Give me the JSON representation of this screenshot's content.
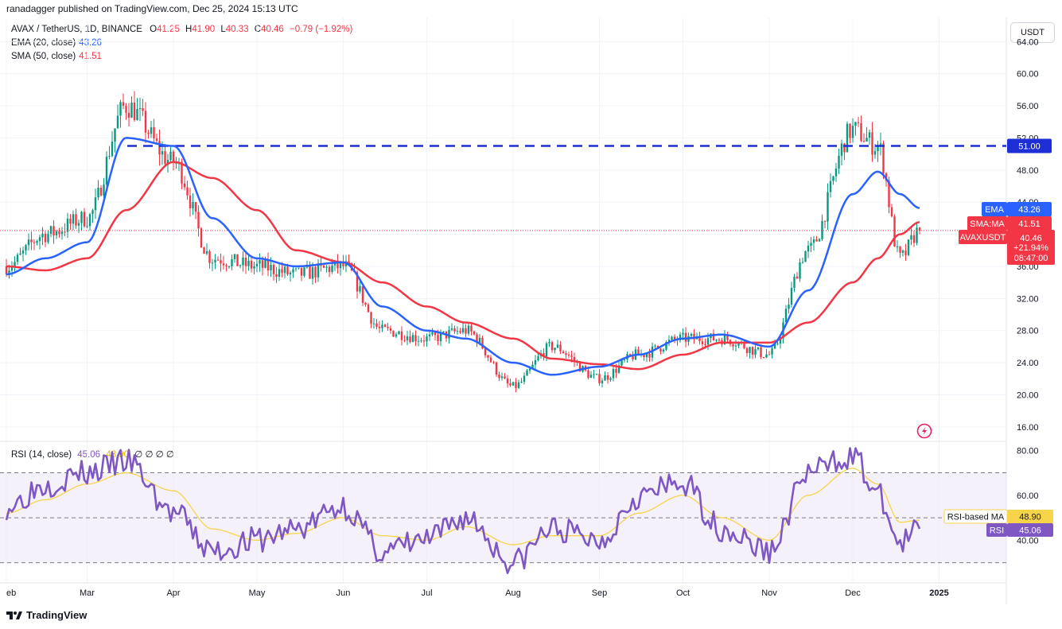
{
  "header": {
    "author": "ranadagger",
    "published_text": "published on TradingView.com, Dec 25, 2024 15:13 UTC"
  },
  "symbol_legend": {
    "symbol": "AVAX / TetherUS, 1D, BINANCE",
    "o_label": "O",
    "o": "41.25",
    "h_label": "H",
    "h": "41.90",
    "l_label": "L",
    "l": "40.33",
    "c_label": "C",
    "c": "40.46",
    "change": "−0.79 (−1.92%)",
    "ema_label": "EMA (20, close)",
    "ema_value": "43.26",
    "sma_label": "SMA (50, close)",
    "sma_value": "41.51"
  },
  "rsi_legend": {
    "label": "RSI (14, close)",
    "rsi": "45.06",
    "rsi_ma": "48.90",
    "placeholders": "∅ ∅ ∅ ∅"
  },
  "currency_button": "USDT",
  "price_axis": {
    "ticks": [
      "64.00",
      "60.00",
      "56.00",
      "52.00",
      "48.00",
      "44.00",
      "40.00",
      "36.00",
      "32.00",
      "28.00",
      "24.00",
      "20.00",
      "16.00"
    ]
  },
  "rsi_axis": {
    "ticks": [
      "80.00",
      "60.00",
      "40.00"
    ]
  },
  "time_axis": {
    "ticks": [
      "eb",
      "Mar",
      "Apr",
      "May",
      "Jun",
      "Jul",
      "Aug",
      "Sep",
      "Oct",
      "Nov",
      "Dec",
      "2025"
    ]
  },
  "price_tags": {
    "resistance": "51.00",
    "ema_name": "EMA",
    "ema": "43.26",
    "sma_name": "SMA:MA",
    "sma": "41.51",
    "symbol_name": "AVAXUSDT",
    "last": "40.46",
    "pct": "+21.94%",
    "countdown": "08:47:00"
  },
  "rsi_tags": {
    "ma_name": "RSI-based MA",
    "ma": "48.90",
    "rsi_name": "RSI",
    "rsi": "45.06"
  },
  "footer": {
    "logo_text": "TradingView"
  },
  "colors": {
    "up": "#089981",
    "down": "#f23645",
    "ema": "#2962ff",
    "sma": "#f23645",
    "resistance": "#1e2fd6",
    "rsi": "#7e57c2",
    "rsi_ma": "#f7d44a",
    "rsi_band": "#ede7f6"
  },
  "chart_data": {
    "type": "candlestick",
    "title": "AVAX / TetherUS, 1D, BINANCE",
    "ylim": [
      14.5,
      67
    ],
    "resistance_level": 51.0,
    "x_dates": [
      "2024-02-01",
      "2024-02-15",
      "2024-03-01",
      "2024-03-15",
      "2024-04-01",
      "2024-04-15",
      "2024-05-01",
      "2024-05-15",
      "2024-06-01",
      "2024-06-15",
      "2024-07-01",
      "2024-07-15",
      "2024-08-01",
      "2024-08-15",
      "2024-09-01",
      "2024-09-15",
      "2024-10-01",
      "2024-10-15",
      "2024-11-01",
      "2024-11-15",
      "2024-12-01",
      "2024-12-10",
      "2024-12-18",
      "2024-12-25"
    ],
    "close_anchors": [
      36,
      40,
      42,
      56,
      49,
      37,
      36,
      35,
      36,
      28,
      27,
      28,
      21,
      26,
      22,
      25,
      27,
      27,
      25,
      38,
      53,
      51,
      37,
      40.46
    ],
    "ema20_anchors": [
      35,
      37,
      39,
      52,
      51,
      42,
      37,
      36,
      36.5,
      31,
      28,
      27,
      24,
      22.5,
      23.5,
      25,
      27,
      27.5,
      26,
      33,
      45,
      47.8,
      45,
      43.26
    ],
    "sma50_anchors": [
      36,
      35.5,
      37,
      43,
      49,
      47,
      43,
      38,
      36.5,
      34,
      31,
      29,
      27,
      24.5,
      23.8,
      23.2,
      25,
      26.5,
      26.5,
      29,
      34,
      37,
      40,
      41.51
    ],
    "rsi": {
      "ylim": [
        21,
        84
      ],
      "upper_band": 70,
      "lower_band": 30,
      "rsi_anchors": [
        55,
        65,
        70,
        75,
        52,
        35,
        40,
        45,
        55,
        35,
        40,
        50,
        30,
        45,
        40,
        60,
        65,
        45,
        35,
        70,
        78,
        60,
        38,
        45.06
      ],
      "ma_anchors": [
        52,
        58,
        65,
        70,
        62,
        45,
        40,
        43,
        50,
        42,
        40,
        46,
        38,
        42,
        42,
        52,
        60,
        50,
        40,
        60,
        72,
        65,
        48,
        48.9
      ]
    }
  }
}
